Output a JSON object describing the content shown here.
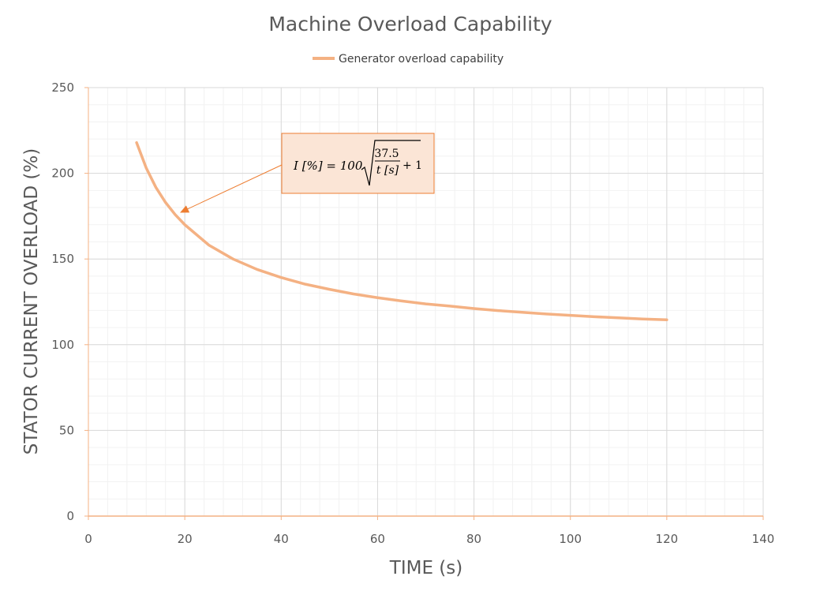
{
  "chart_data": {
    "type": "line",
    "title": "Machine Overload Capability",
    "xlabel": "TIME (s)",
    "ylabel": "STATOR CURRENT OVERLOAD (%)",
    "xlim": [
      0,
      140
    ],
    "ylim": [
      0,
      250
    ],
    "x_ticks": [
      "0",
      "20",
      "40",
      "60",
      "80",
      "100",
      "120",
      "140"
    ],
    "y_ticks": [
      "0",
      "50",
      "100",
      "150",
      "200",
      "250"
    ],
    "grid": true,
    "legend_position": "top",
    "series": [
      {
        "name": "Generator overload capability",
        "color": "#f4b183",
        "x": [
          10,
          12,
          14,
          16,
          18,
          20,
          25,
          30,
          35,
          40,
          45,
          50,
          55,
          60,
          65,
          70,
          75,
          80,
          85,
          90,
          95,
          100,
          105,
          110,
          115,
          120
        ],
        "y": [
          217.9,
          203.1,
          191.8,
          183.0,
          175.9,
          170.0,
          158.1,
          150.0,
          143.9,
          139.2,
          135.3,
          132.3,
          129.6,
          127.4,
          125.5,
          123.8,
          122.5,
          121.1,
          119.9,
          118.9,
          117.9,
          117.1,
          116.3,
          115.7,
          115.0,
          114.5
        ]
      }
    ],
    "annotation": {
      "lhs": "I [%] = 100",
      "numerator": "37.5",
      "denominator": "t [s]",
      "plus": "+ 1",
      "points_to": {
        "x": 19,
        "y": 177
      },
      "box_color": "#fbe5d6",
      "border_color": "#ed7d31"
    }
  }
}
